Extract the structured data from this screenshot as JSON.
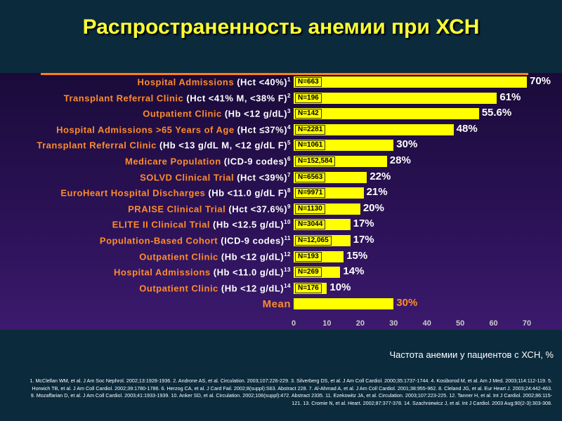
{
  "title": "Распространенность анемии при ХСН",
  "chart_data": {
    "type": "bar",
    "orientation": "horizontal",
    "xlabel": "Частота анемии у пациентов с ХСН, %",
    "xlim": [
      0,
      70
    ],
    "xticks": [
      "0",
      "10",
      "20",
      "30",
      "40",
      "50",
      "60",
      "70"
    ],
    "categories": [
      {
        "name": "Hospital Admissions",
        "crit": "(Hct <40%)",
        "ref": "1"
      },
      {
        "name": "Transplant Referral Clinic",
        "crit": "(Hct <41% M, <38% F)",
        "ref": "2"
      },
      {
        "name": "Outpatient Clinic",
        "crit": "(Hb <12 g/dL)",
        "ref": "3"
      },
      {
        "name": "Hospital Admissions >65 Years of Age",
        "crit": "(Hct ≤37%)",
        "ref": "4"
      },
      {
        "name": "Transplant Referral Clinic",
        "crit": "(Hb <13 g/dL M, <12 g/dL F)",
        "ref": "5"
      },
      {
        "name": "Medicare Population",
        "crit": "(ICD-9 codes)",
        "ref": "6"
      },
      {
        "name": "SOLVD Clinical Trial",
        "crit": " (Hct <39%)",
        "ref": "7"
      },
      {
        "name": "EuroHeart Hospital Discharges",
        "crit": "(Hb <11.0 g/dL F)",
        "ref": "8"
      },
      {
        "name": "PRAISE Clinical Trial",
        "crit": "(Hct <37.6%)",
        "ref": "9"
      },
      {
        "name": "ELITE II Clinical Trial",
        "crit": "(Hb <12.5 g/dL)",
        "ref": "10"
      },
      {
        "name": "Population-Based Cohort",
        "crit": "(ICD-9 codes)",
        "ref": "11"
      },
      {
        "name": "Outpatient Clinic",
        "crit": "(Hb <12 g/dL)",
        "ref": "12"
      },
      {
        "name": "Hospital Admissions",
        "crit": "(Hb <11.0 g/dL)",
        "ref": "13"
      },
      {
        "name": "Outpatient Clinic",
        "crit": "(Hb <12 g/dL)",
        "ref": "14"
      },
      {
        "name": "Mean",
        "crit": "",
        "ref": ""
      }
    ],
    "values": [
      70,
      61,
      55.6,
      48,
      30,
      28,
      22,
      21,
      20,
      17,
      17,
      15,
      14,
      10,
      30
    ],
    "value_labels": [
      "70%",
      "61%",
      "55.6%",
      "48%",
      "30%",
      "28%",
      "22%",
      "21%",
      "20%",
      "17%",
      "17%",
      "15%",
      "14%",
      "10%",
      "30%"
    ],
    "n_labels": [
      "N=663",
      "N=196",
      "N=142",
      "N=2281",
      "N=1061",
      "N=152,584",
      "N=6563",
      "N=9971",
      "N=1130",
      "N=3044",
      "N=12,065",
      "N=193",
      "N=269",
      "N=176",
      ""
    ],
    "bar_color": "#ffff00"
  },
  "references": "1. McClellan WM, et al. J Am Soc Nephrol. 2002;13:1928-1936. 2. Androne AS, et al. Circulation. 2003;107:226-229. 3. Silverberg DS, et al. J Am Coll Cardiol. 2000;35:1737-1744. 4. Kosiborod M, et al. Am J Med. 2003;114:112-119. 5. Horwich TB, et al. J Am Coll Cardiol. 2002;39:1780-1786. 6. Herzog CA, et al. J Card Fail. 2002;8(suppl):S63. Abstract 228. 7. Al-Ahmad A, et al. J Am Coll Cardiol. 2001;38:955-962. 8. Cleland JG, et al. Eur Heart J. 2003;24:442-463. 9. Mozaffarian D, et al. J Am Coll Cardiol. 2003;41:1933-1939. 10. Anker SD, et al. Circulation. 2002;106(suppl):472. Abstract 2335. 11. Ezekowitz JA, et al. Circulation. 2003;107:223-225. 12. Tanner H, et al. Int J Cardiol. 2002;86:115-121. 13. Cromie N, et al. Heart. 2002;87:377-378. 14. Szachniewicz J, et al. Int J Cardiol. 2003 Aug;90(2-3):303-308."
}
